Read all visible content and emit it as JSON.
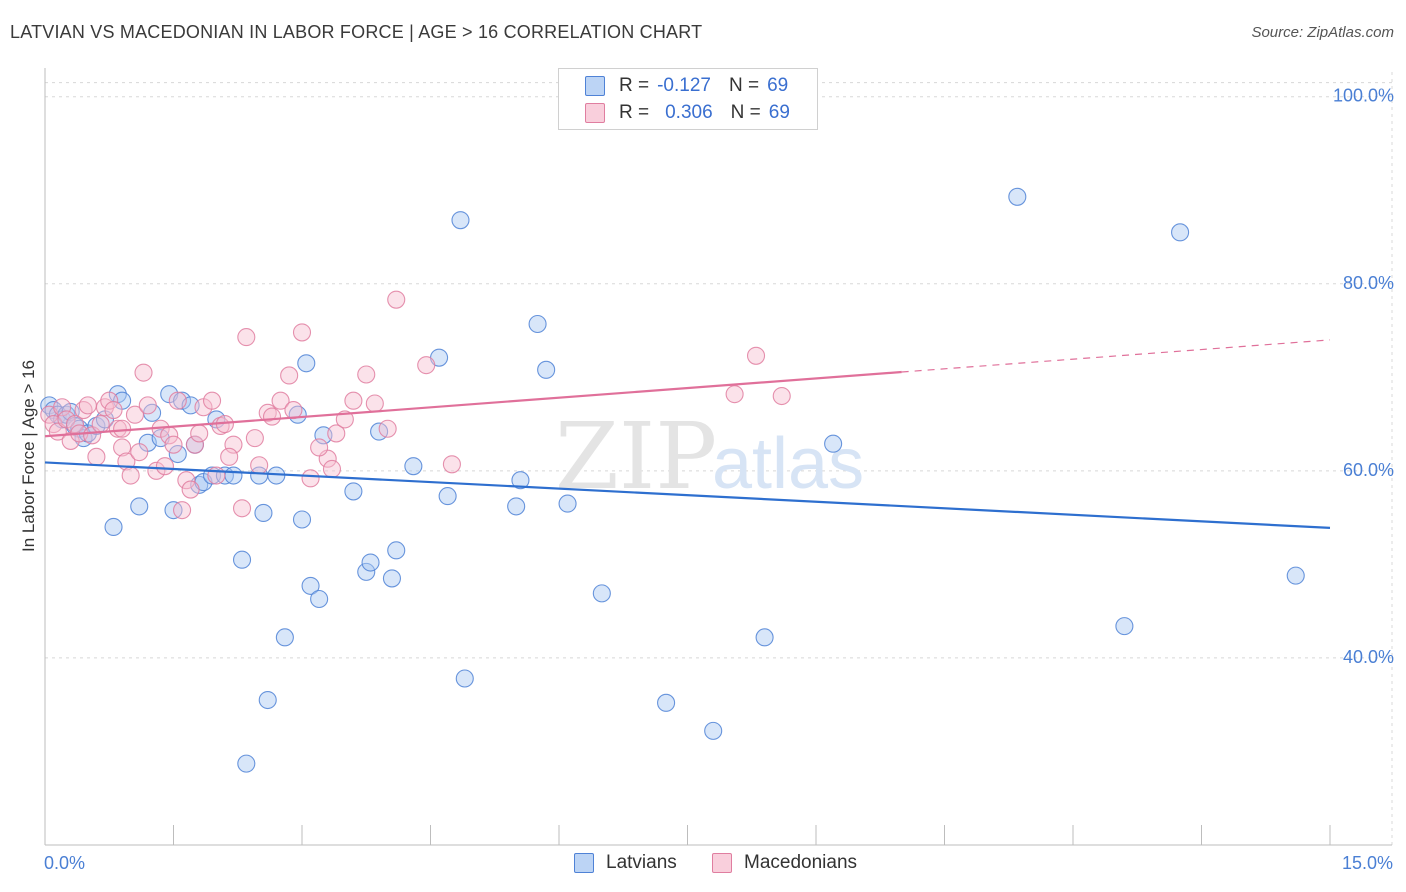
{
  "header": {
    "title": "LATVIAN VS MACEDONIAN IN LABOR FORCE | AGE > 16 CORRELATION CHART",
    "source": "Source: ZipAtlas.com"
  },
  "watermark": {
    "zip": "ZIP",
    "atlas": "atlas"
  },
  "legend_top": {
    "rows": [
      {
        "r_label": "R = ",
        "r_value": "-0.127",
        "n_label": "N = ",
        "n_value": "69"
      },
      {
        "r_label": "R = ",
        "r_value": "0.306",
        "n_label": "N = ",
        "n_value": "69"
      }
    ]
  },
  "legend_bottom": {
    "latvians": "Latvians",
    "macedonians": "Macedonians"
  },
  "colors": {
    "latvian_fill": "#a9c8f2",
    "latvian_stroke": "#4f82d6",
    "latvian_line": "#2e6fcf",
    "macedonian_fill": "#f6bfd0",
    "macedonian_stroke": "#e07ea0",
    "macedonian_line": "#e0709a",
    "grid": "#d8d8d8",
    "tick": "#4a7fd4"
  },
  "chart_data": {
    "type": "scatter",
    "title": "LATVIAN VS MACEDONIAN IN LABOR FORCE | AGE > 16 CORRELATION CHART",
    "xlabel": "",
    "ylabel": "In Labor Force | Age > 16",
    "xlim": [
      0,
      15
    ],
    "ylim": [
      20,
      102
    ],
    "x_tick_labels": {
      "min": "0.0%",
      "max": "15.0%"
    },
    "y_ticks": [
      {
        "value": 40,
        "label": "40.0%"
      },
      {
        "value": 60,
        "label": "60.0%"
      },
      {
        "value": 80,
        "label": "80.0%"
      },
      {
        "value": 100,
        "label": "100.0%"
      }
    ],
    "legend_position": "top-center",
    "series": [
      {
        "name": "Latvians",
        "R": -0.127,
        "N": 69,
        "trend": {
          "x": [
            0,
            15
          ],
          "y": [
            60.9,
            53.9
          ],
          "dashed_from": null
        },
        "points": [
          [
            0.05,
            67.0
          ],
          [
            0.1,
            66.5
          ],
          [
            0.15,
            66.0
          ],
          [
            0.2,
            65.5
          ],
          [
            0.25,
            66.0
          ],
          [
            0.3,
            66.3
          ],
          [
            0.35,
            64.8
          ],
          [
            0.4,
            64.5
          ],
          [
            0.45,
            63.5
          ],
          [
            0.5,
            64.0
          ],
          [
            0.6,
            64.8
          ],
          [
            0.7,
            65.5
          ],
          [
            0.8,
            54.0
          ],
          [
            0.85,
            68.2
          ],
          [
            0.9,
            67.5
          ],
          [
            1.1,
            56.2
          ],
          [
            1.2,
            63.0
          ],
          [
            1.25,
            66.2
          ],
          [
            1.35,
            63.5
          ],
          [
            1.45,
            68.2
          ],
          [
            1.5,
            55.8
          ],
          [
            1.55,
            61.8
          ],
          [
            1.6,
            67.5
          ],
          [
            1.7,
            67.0
          ],
          [
            1.75,
            62.8
          ],
          [
            1.8,
            58.5
          ],
          [
            1.85,
            58.8
          ],
          [
            1.95,
            59.5
          ],
          [
            2.0,
            65.5
          ],
          [
            2.1,
            59.5
          ],
          [
            2.2,
            59.5
          ],
          [
            2.3,
            50.5
          ],
          [
            2.35,
            28.7
          ],
          [
            2.5,
            59.5
          ],
          [
            2.55,
            55.5
          ],
          [
            2.6,
            35.5
          ],
          [
            2.7,
            59.5
          ],
          [
            2.8,
            42.2
          ],
          [
            2.95,
            66.0
          ],
          [
            3.0,
            54.8
          ],
          [
            3.05,
            71.5
          ],
          [
            3.1,
            47.7
          ],
          [
            3.2,
            46.3
          ],
          [
            3.25,
            63.8
          ],
          [
            3.6,
            57.8
          ],
          [
            3.75,
            49.2
          ],
          [
            3.8,
            50.2
          ],
          [
            3.9,
            64.2
          ],
          [
            4.05,
            48.5
          ],
          [
            4.1,
            51.5
          ],
          [
            4.3,
            60.5
          ],
          [
            4.6,
            72.1
          ],
          [
            4.7,
            57.3
          ],
          [
            4.85,
            86.8
          ],
          [
            4.9,
            37.8
          ],
          [
            5.5,
            56.2
          ],
          [
            5.55,
            59.0
          ],
          [
            5.75,
            75.7
          ],
          [
            5.85,
            70.8
          ],
          [
            6.1,
            56.5
          ],
          [
            6.5,
            46.9
          ],
          [
            7.25,
            35.2
          ],
          [
            7.8,
            32.2
          ],
          [
            8.4,
            42.2
          ],
          [
            9.2,
            62.9
          ],
          [
            11.35,
            89.3
          ],
          [
            12.6,
            43.4
          ],
          [
            13.25,
            85.5
          ],
          [
            14.6,
            48.8
          ]
        ]
      },
      {
        "name": "Macedonians",
        "R": 0.306,
        "N": 69,
        "trend": {
          "x": [
            0,
            15
          ],
          "y": [
            63.7,
            74.0
          ],
          "dashed_from": 10.0
        },
        "points": [
          [
            0.05,
            66.0
          ],
          [
            0.1,
            65.0
          ],
          [
            0.15,
            64.2
          ],
          [
            0.2,
            66.8
          ],
          [
            0.25,
            65.5
          ],
          [
            0.3,
            63.2
          ],
          [
            0.35,
            65.0
          ],
          [
            0.4,
            64.0
          ],
          [
            0.45,
            66.5
          ],
          [
            0.5,
            67.0
          ],
          [
            0.55,
            63.8
          ],
          [
            0.6,
            61.5
          ],
          [
            0.65,
            65.0
          ],
          [
            0.7,
            66.8
          ],
          [
            0.75,
            67.5
          ],
          [
            0.8,
            66.5
          ],
          [
            0.85,
            64.5
          ],
          [
            0.9,
            62.5
          ],
          [
            0.95,
            61.0
          ],
          [
            1.0,
            59.5
          ],
          [
            1.05,
            66.0
          ],
          [
            1.1,
            62.0
          ],
          [
            1.15,
            70.5
          ],
          [
            1.2,
            67.0
          ],
          [
            1.3,
            60.0
          ],
          [
            1.35,
            64.5
          ],
          [
            1.45,
            63.8
          ],
          [
            1.5,
            62.8
          ],
          [
            1.55,
            67.5
          ],
          [
            1.6,
            55.8
          ],
          [
            1.65,
            59.0
          ],
          [
            1.7,
            58.0
          ],
          [
            1.75,
            62.8
          ],
          [
            1.8,
            64.0
          ],
          [
            1.85,
            66.8
          ],
          [
            1.95,
            67.5
          ],
          [
            2.0,
            59.5
          ],
          [
            2.05,
            64.8
          ],
          [
            2.1,
            65.0
          ],
          [
            2.2,
            62.8
          ],
          [
            2.3,
            56.0
          ],
          [
            2.35,
            74.3
          ],
          [
            2.5,
            60.6
          ],
          [
            2.6,
            66.2
          ],
          [
            2.65,
            65.8
          ],
          [
            2.75,
            67.5
          ],
          [
            2.85,
            70.2
          ],
          [
            2.9,
            66.5
          ],
          [
            3.0,
            74.8
          ],
          [
            3.1,
            59.2
          ],
          [
            3.3,
            61.3
          ],
          [
            3.35,
            60.2
          ],
          [
            3.4,
            64.0
          ],
          [
            3.5,
            65.5
          ],
          [
            3.6,
            67.5
          ],
          [
            3.75,
            70.3
          ],
          [
            3.85,
            67.2
          ],
          [
            4.0,
            64.5
          ],
          [
            4.1,
            78.3
          ],
          [
            4.45,
            71.3
          ],
          [
            4.75,
            60.7
          ],
          [
            8.05,
            68.2
          ],
          [
            8.3,
            72.3
          ],
          [
            8.6,
            68.0
          ],
          [
            0.9,
            64.5
          ],
          [
            1.4,
            60.5
          ],
          [
            2.15,
            61.5
          ],
          [
            3.2,
            62.5
          ],
          [
            2.45,
            63.5
          ]
        ]
      }
    ]
  }
}
